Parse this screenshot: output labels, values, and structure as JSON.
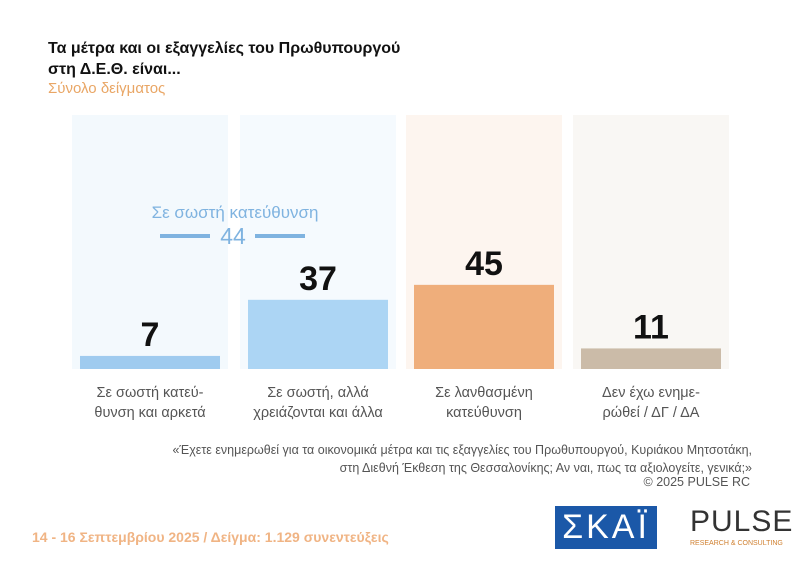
{
  "chart_data": {
    "type": "bar",
    "title": "Τα μέτρα και οι εξαγγελίες του Πρωθυπουργού\nστη Δ.Ε.Θ. είναι...",
    "subtitle": "Σύνολο δείγματος",
    "categories": [
      "Σε σωστή κατεύ-\nθυνση και αρκετά",
      "Σε σωστή, αλλά\nχρειάζονται και άλλα",
      "Σε λανθασμένη\nκατεύθυνση",
      "Δεν έχω ενημε-\nρώθεί / ΔΓ / ΔΑ"
    ],
    "values": [
      7,
      37,
      45,
      11
    ],
    "colors": [
      "#9fcbef",
      "#acd5f4",
      "#efae7b",
      "#cbbba8"
    ],
    "annotation": {
      "text": "Σε σωστή κατεύθυνση",
      "value": 44,
      "color": "#7fb3e0"
    },
    "note": "«Έχετε ενημερωθεί για τα οικονομικά μέτρα και τις εξαγγελίες του Πρωθυπουργού, Κυριάκου Μητσοτάκη,\nστη Διεθνή Έκθεση της Θεσσαλονίκης; Αν ναι, πως τα αξιολογείτε, γενικά;»",
    "copyright": "©  2025  PULSE RC",
    "footer": "14 - 16 Σεπτεμβρίου 2025  /  Δείγμα:  1.129 συνεντεύξεις",
    "logo_left": "ΣΚΑΪ",
    "logo_right": "PULSE",
    "logo_right_sub": "RESEARCH & CONSULTING"
  }
}
